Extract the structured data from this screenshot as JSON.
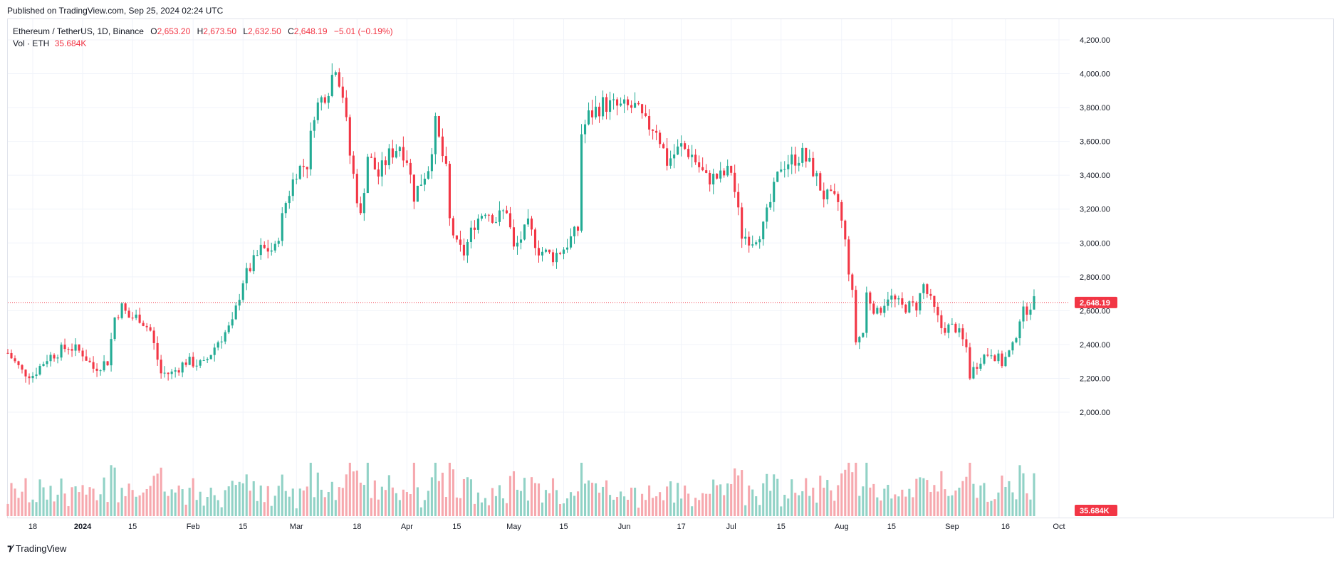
{
  "header": {
    "published": "Published on TradingView.com, Sep 25, 2024 02:24 UTC"
  },
  "legend": {
    "symbol": "Ethereum / TetherUS, 1D, Binance",
    "o_key": "O",
    "o_val": "2,653.20",
    "h_key": "H",
    "h_val": "2,673.50",
    "l_key": "L",
    "l_val": "2,632.50",
    "c_key": "C",
    "c_val": "2,648.19",
    "change": "−5.01 (−0.19%)",
    "vol_label": "Vol · ETH",
    "vol_val": "35.684K"
  },
  "footer": {
    "brand": "TradingView"
  },
  "colors": {
    "up": "#22ab94",
    "down": "#f23645",
    "up_vol": "#91d2c6",
    "down_vol": "#f6a8ae",
    "grid": "#f0f3fa"
  },
  "chart_data": {
    "type": "candlestick",
    "symbol": "ETHUSDT",
    "y_ticks": [
      "4,200.00",
      "4,000.00",
      "3,800.00",
      "3,600.00",
      "3,400.00",
      "3,200.00",
      "3,000.00",
      "2,800.00",
      "2,600.00",
      "2,400.00",
      "2,200.00",
      "2,000.00"
    ],
    "y_tick_values": [
      4200,
      4000,
      3800,
      3600,
      3400,
      3200,
      3000,
      2800,
      2600,
      2400,
      2200,
      2000
    ],
    "ylim": [
      1900,
      4300
    ],
    "last_price": 2648.19,
    "last_price_label": "2,648.19",
    "last_volume_label": "35.684K",
    "x_ticks": [
      {
        "label": "18",
        "date": "2023-12-18",
        "bold": false
      },
      {
        "label": "2024",
        "date": "2024-01-01",
        "bold": true
      },
      {
        "label": "15",
        "date": "2024-01-15",
        "bold": false
      },
      {
        "label": "Feb",
        "date": "2024-02-01",
        "bold": false
      },
      {
        "label": "15",
        "date": "2024-02-15",
        "bold": false
      },
      {
        "label": "Mar",
        "date": "2024-03-01",
        "bold": false
      },
      {
        "label": "18",
        "date": "2024-03-18",
        "bold": false
      },
      {
        "label": "Apr",
        "date": "2024-04-01",
        "bold": false
      },
      {
        "label": "15",
        "date": "2024-04-15",
        "bold": false
      },
      {
        "label": "May",
        "date": "2024-05-01",
        "bold": false
      },
      {
        "label": "15",
        "date": "2024-05-15",
        "bold": false
      },
      {
        "label": "Jun",
        "date": "2024-06-01",
        "bold": false
      },
      {
        "label": "17",
        "date": "2024-06-17",
        "bold": false
      },
      {
        "label": "Jul",
        "date": "2024-07-01",
        "bold": false
      },
      {
        "label": "15",
        "date": "2024-07-15",
        "bold": false
      },
      {
        "label": "Aug",
        "date": "2024-08-01",
        "bold": false
      },
      {
        "label": "15",
        "date": "2024-08-15",
        "bold": false
      },
      {
        "label": "Sep",
        "date": "2024-09-01",
        "bold": false
      },
      {
        "label": "16",
        "date": "2024-09-16",
        "bold": false
      },
      {
        "label": "Oct",
        "date": "2024-10-01",
        "bold": false
      }
    ],
    "x_range": [
      "2023-12-11",
      "2024-10-04"
    ],
    "close_keypoints": [
      [
        "2023-12-11",
        2350
      ],
      [
        "2023-12-15",
        2240
      ],
      [
        "2023-12-18",
        2220
      ],
      [
        "2023-12-22",
        2320
      ],
      [
        "2023-12-28",
        2390
      ],
      [
        "2024-01-01",
        2350
      ],
      [
        "2024-01-04",
        2260
      ],
      [
        "2024-01-08",
        2300
      ],
      [
        "2024-01-10",
        2560
      ],
      [
        "2024-01-12",
        2620
      ],
      [
        "2024-01-14",
        2560
      ],
      [
        "2024-01-17",
        2560
      ],
      [
        "2024-01-20",
        2480
      ],
      [
        "2024-01-23",
        2230
      ],
      [
        "2024-01-26",
        2230
      ],
      [
        "2024-01-30",
        2300
      ],
      [
        "2024-02-04",
        2280
      ],
      [
        "2024-02-08",
        2420
      ],
      [
        "2024-02-12",
        2520
      ],
      [
        "2024-02-15",
        2780
      ],
      [
        "2024-02-20",
        2960
      ],
      [
        "2024-02-24",
        2960
      ],
      [
        "2024-02-27",
        3240
      ],
      [
        "2024-03-01",
        3430
      ],
      [
        "2024-03-04",
        3470
      ],
      [
        "2024-03-06",
        3780
      ],
      [
        "2024-03-10",
        3920
      ],
      [
        "2024-03-12",
        4060
      ],
      [
        "2024-03-14",
        3880
      ],
      [
        "2024-03-16",
        3520
      ],
      [
        "2024-03-19",
        3150
      ],
      [
        "2024-03-21",
        3520
      ],
      [
        "2024-03-24",
        3400
      ],
      [
        "2024-03-27",
        3520
      ],
      [
        "2024-03-30",
        3580
      ],
      [
        "2024-04-01",
        3500
      ],
      [
        "2024-04-03",
        3280
      ],
      [
        "2024-04-07",
        3450
      ],
      [
        "2024-04-09",
        3700
      ],
      [
        "2024-04-12",
        3420
      ],
      [
        "2024-04-13",
        3130
      ],
      [
        "2024-04-15",
        2980
      ],
      [
        "2024-04-17",
        2940
      ],
      [
        "2024-04-20",
        3120
      ],
      [
        "2024-04-23",
        3200
      ],
      [
        "2024-04-26",
        3140
      ],
      [
        "2024-04-29",
        3200
      ],
      [
        "2024-05-01",
        2960
      ],
      [
        "2024-05-05",
        3100
      ],
      [
        "2024-05-08",
        2960
      ],
      [
        "2024-05-12",
        2920
      ],
      [
        "2024-05-15",
        2970
      ],
      [
        "2024-05-19",
        3080
      ],
      [
        "2024-05-20",
        3650
      ],
      [
        "2024-05-22",
        3750
      ],
      [
        "2024-05-26",
        3820
      ],
      [
        "2024-05-31",
        3800
      ],
      [
        "2024-06-04",
        3800
      ],
      [
        "2024-06-07",
        3700
      ],
      [
        "2024-06-10",
        3680
      ],
      [
        "2024-06-13",
        3480
      ],
      [
        "2024-06-17",
        3570
      ],
      [
        "2024-06-20",
        3520
      ],
      [
        "2024-06-24",
        3380
      ],
      [
        "2024-06-28",
        3390
      ],
      [
        "2024-07-01",
        3430
      ],
      [
        "2024-07-04",
        3050
      ],
      [
        "2024-07-07",
        3020
      ],
      [
        "2024-07-10",
        3090
      ],
      [
        "2024-07-15",
        3460
      ],
      [
        "2024-07-21",
        3520
      ],
      [
        "2024-07-24",
        3430
      ],
      [
        "2024-07-27",
        3280
      ],
      [
        "2024-07-31",
        3240
      ],
      [
        "2024-08-02",
        3000
      ],
      [
        "2024-08-04",
        2690
      ],
      [
        "2024-08-05",
        2420
      ],
      [
        "2024-08-07",
        2470
      ],
      [
        "2024-08-08",
        2700
      ],
      [
        "2024-08-11",
        2580
      ],
      [
        "2024-08-14",
        2690
      ],
      [
        "2024-08-18",
        2620
      ],
      [
        "2024-08-22",
        2630
      ],
      [
        "2024-08-24",
        2750
      ],
      [
        "2024-08-27",
        2600
      ],
      [
        "2024-08-29",
        2500
      ],
      [
        "2024-09-02",
        2500
      ],
      [
        "2024-09-05",
        2380
      ],
      [
        "2024-09-06",
        2220
      ],
      [
        "2024-09-09",
        2320
      ],
      [
        "2024-09-12",
        2360
      ],
      [
        "2024-09-15",
        2290
      ],
      [
        "2024-09-18",
        2380
      ],
      [
        "2024-09-20",
        2560
      ],
      [
        "2024-09-23",
        2640
      ],
      [
        "2024-09-24",
        2648
      ]
    ]
  }
}
